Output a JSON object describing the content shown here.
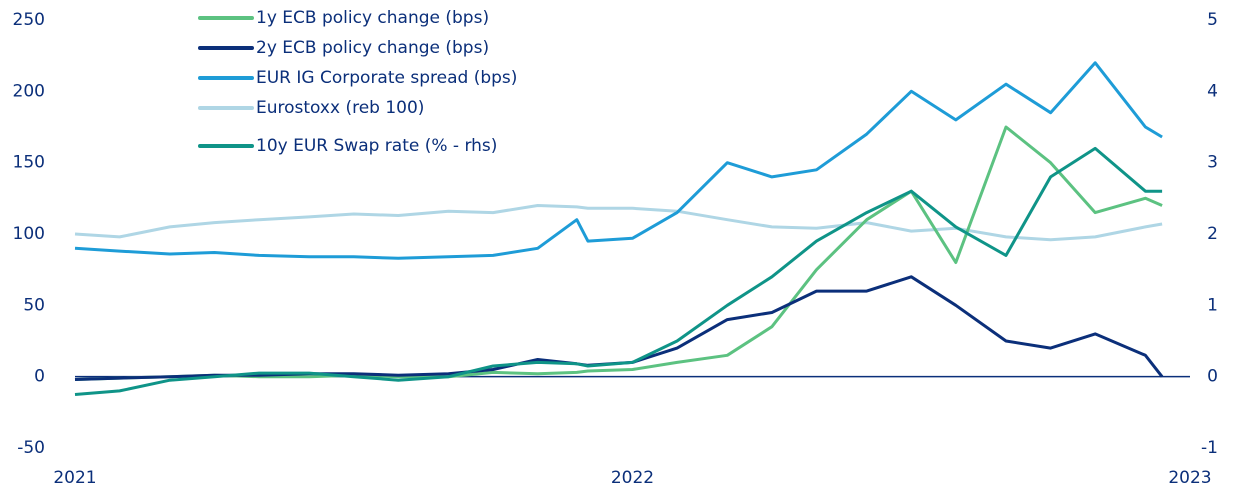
{
  "chart_data": {
    "type": "line",
    "x": [
      2021.0,
      2021.08,
      2021.17,
      2021.25,
      2021.33,
      2021.42,
      2021.5,
      2021.58,
      2021.67,
      2021.75,
      2021.83,
      2021.9,
      2021.92,
      2022.0,
      2022.08,
      2022.17,
      2022.25,
      2022.33,
      2022.42,
      2022.5,
      2022.58,
      2022.67,
      2022.75,
      2022.83,
      2022.92,
      2022.95
    ],
    "series": [
      {
        "name": "1y ECB policy change (bps)",
        "color": "#5cc281",
        "values": [
          -2,
          -1,
          0,
          1,
          0,
          0,
          1,
          0,
          0,
          3,
          2,
          3,
          4,
          5,
          10,
          15,
          35,
          75,
          110,
          130,
          80,
          175,
          150,
          115,
          125,
          120
        ]
      },
      {
        "name": "2y ECB policy change (bps)",
        "color": "#0b2f7a",
        "values": [
          -2,
          -1,
          0,
          1,
          1,
          2,
          2,
          1,
          2,
          5,
          12,
          9,
          8,
          10,
          20,
          40,
          45,
          60,
          60,
          70,
          50,
          25,
          20,
          30,
          15,
          0
        ]
      },
      {
        "name": "EUR IG Corporate spread (bps)",
        "color": "#1e9cd7",
        "values": [
          90,
          88,
          86,
          87,
          85,
          84,
          84,
          83,
          84,
          85,
          90,
          110,
          95,
          97,
          115,
          150,
          140,
          145,
          170,
          200,
          180,
          205,
          185,
          220,
          175,
          168
        ]
      },
      {
        "name": "Eurostoxx (reb 100)",
        "color": "#afd6e5",
        "values": [
          100,
          98,
          105,
          108,
          110,
          112,
          114,
          113,
          116,
          115,
          120,
          119,
          118,
          118,
          116,
          110,
          105,
          104,
          108,
          102,
          104,
          98,
          96,
          98,
          105,
          107
        ]
      },
      {
        "name": "10y EUR Swap rate (% - rhs)",
        "color": "#0f9488",
        "axis": "y2",
        "values": [
          -0.25,
          -0.2,
          -0.05,
          0.0,
          0.05,
          0.05,
          0.0,
          -0.05,
          0.0,
          0.15,
          0.2,
          0.18,
          0.15,
          0.2,
          0.5,
          1.0,
          1.4,
          1.9,
          2.3,
          2.6,
          2.1,
          1.7,
          2.8,
          3.2,
          2.6,
          2.6
        ]
      }
    ],
    "xlim": [
      2021,
      2023
    ],
    "xticks": [
      2021,
      2022,
      2023
    ],
    "ylim": [
      -50,
      250
    ],
    "yticks": [
      -50,
      0,
      50,
      100,
      150,
      200,
      250
    ],
    "y2lim": [
      -1,
      5
    ],
    "y2ticks": [
      -1,
      0,
      1,
      2,
      3,
      4,
      5
    ],
    "grid": false,
    "legend": "top-left",
    "tick_color": "#0b2f7a",
    "negative_tick_color": "#e4003a"
  }
}
